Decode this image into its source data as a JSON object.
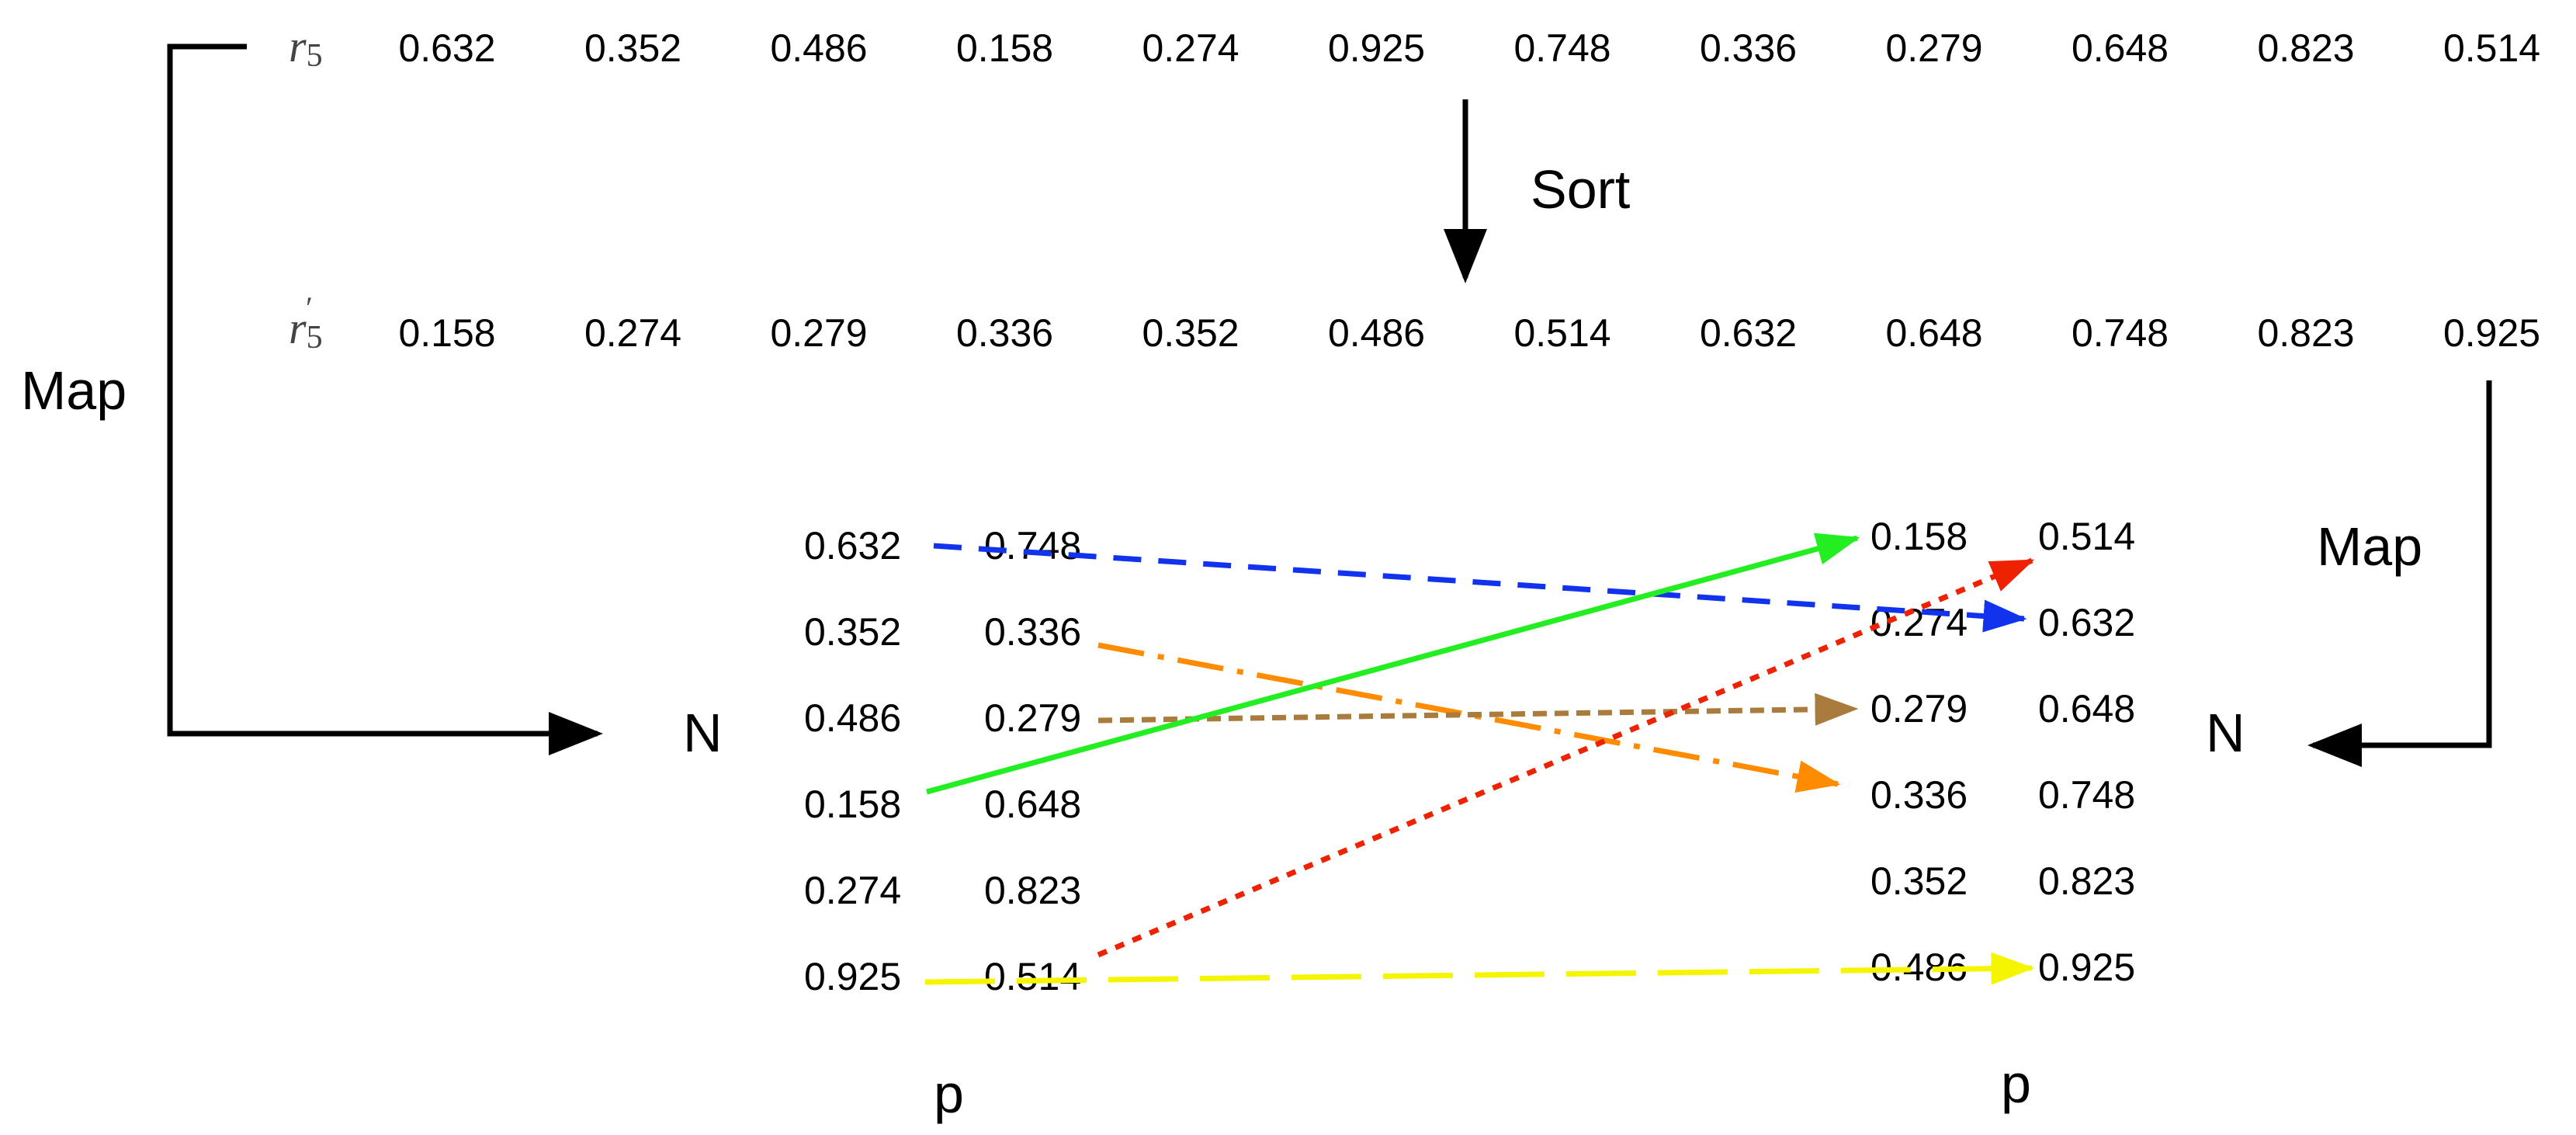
{
  "rows": {
    "r5": {
      "name": "r",
      "subscript": "5",
      "prime": "",
      "values": [
        "0.632",
        "0.352",
        "0.486",
        "0.158",
        "0.274",
        "0.925",
        "0.748",
        "0.336",
        "0.279",
        "0.648",
        "0.823",
        "0.514"
      ]
    },
    "r5_sorted": {
      "name": "r",
      "subscript": "5",
      "prime": "′",
      "values": [
        "0.158",
        "0.274",
        "0.279",
        "0.336",
        "0.352",
        "0.486",
        "0.514",
        "0.632",
        "0.648",
        "0.748",
        "0.823",
        "0.925"
      ]
    }
  },
  "labels": {
    "sort": "Sort",
    "map_left": "Map",
    "map_right": "Map",
    "n_left": "N",
    "n_right": "N",
    "p_left": "p",
    "p_right": "p"
  },
  "left_table": {
    "col1": [
      "0.632",
      "0.352",
      "0.486",
      "0.158",
      "0.274",
      "0.925"
    ],
    "col2": [
      "0.748",
      "0.336",
      "0.279",
      "0.648",
      "0.823",
      "0.514"
    ]
  },
  "right_table": {
    "col1": [
      "0.158",
      "0.274",
      "0.279",
      "0.336",
      "0.352",
      "0.486"
    ],
    "col2": [
      "0.514",
      "0.632",
      "0.648",
      "0.748",
      "0.823",
      "0.925"
    ]
  },
  "arrows": [
    {
      "name": "blue-arrow",
      "color": "#1133ee",
      "style": "dashed"
    },
    {
      "name": "orange-arrow",
      "color": "#ff8c00",
      "style": "dash-dot"
    },
    {
      "name": "brown-arrow",
      "color": "#a97b3c",
      "style": "short-dashed"
    },
    {
      "name": "green-arrow",
      "color": "#22ee22",
      "style": "solid"
    },
    {
      "name": "red-arrow",
      "color": "#ee2200",
      "style": "dotted"
    },
    {
      "name": "yellow-arrow",
      "color": "#f5f500",
      "style": "long-dashed"
    }
  ]
}
